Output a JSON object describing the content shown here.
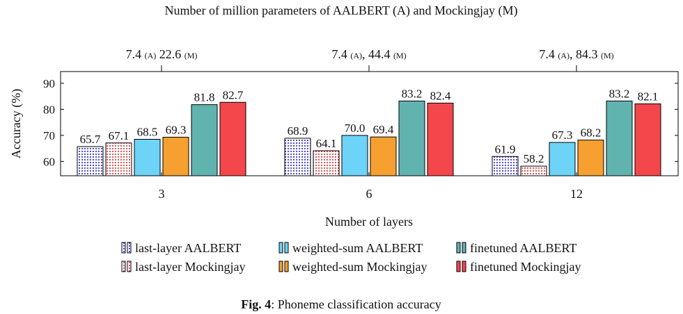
{
  "chart_data": {
    "type": "bar",
    "title": "Number of million parameters of AALBERT (A) and Mockingjay (M)",
    "top_axis_labels": [
      {
        "a": "7.4",
        "a_sub": "(A)",
        "sep": "",
        "m": "22.6",
        "m_sub": "(M)"
      },
      {
        "a": "7.4",
        "a_sub": "(A)",
        "sep": ",",
        "m": "44.4",
        "m_sub": "(M)"
      },
      {
        "a": "7.4",
        "a_sub": "(A)",
        "sep": ",",
        "m": "84.3",
        "m_sub": "(M)"
      }
    ],
    "xlabel": "Number of layers",
    "ylabel": "Accuracy (%)",
    "ylim": [
      54.5,
      94.5
    ],
    "yticks": [
      60,
      70,
      80,
      90
    ],
    "categories": [
      "3",
      "6",
      "12"
    ],
    "series": [
      {
        "name": "last-layer AALBERT",
        "color": "#1a1adb",
        "pattern": "dots",
        "values": [
          65.7,
          68.9,
          61.9
        ]
      },
      {
        "name": "last-layer Mockingjay",
        "color": "#d62a2a",
        "pattern": "dots",
        "values": [
          67.1,
          64.1,
          58.2
        ]
      },
      {
        "name": "weighted-sum AALBERT",
        "color": "#6dd3f7",
        "pattern": "solid",
        "values": [
          68.5,
          70.0,
          67.3
        ]
      },
      {
        "name": "weighted-sum Mockingjay",
        "color": "#f5a030",
        "pattern": "solid",
        "values": [
          69.3,
          69.4,
          68.2
        ]
      },
      {
        "name": "finetuned AALBERT",
        "color": "#61b3b0",
        "pattern": "solid",
        "values": [
          81.8,
          83.2,
          83.2
        ]
      },
      {
        "name": "finetuned Mockingjay",
        "color": "#f4474b",
        "pattern": "solid",
        "values": [
          82.7,
          82.4,
          82.1
        ]
      }
    ],
    "legend_order": [
      0,
      2,
      4,
      1,
      3,
      5
    ],
    "legend_position": "bottom"
  },
  "caption": {
    "label": "Fig. 4",
    "text": ": Phoneme classification accuracy"
  }
}
